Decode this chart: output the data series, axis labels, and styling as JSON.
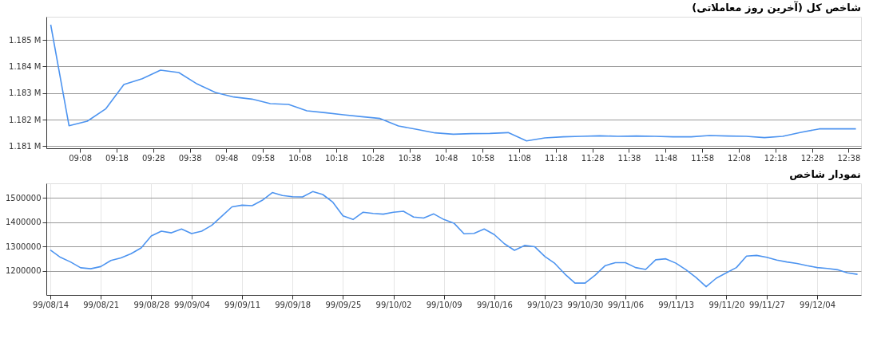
{
  "chart_data": [
    {
      "type": "line",
      "title": "شاخص کل (آخرین روز معاملاتی)",
      "grid": "y",
      "marker": "none",
      "line_style": "solid",
      "x": [
        9,
        9.0833,
        9.1667,
        9.25,
        9.3333,
        9.4167,
        9.5,
        9.5833,
        9.6667,
        9.75,
        9.8333,
        9.9167,
        10,
        10.0833,
        10.1667,
        10.25,
        10.3333,
        10.4167,
        10.5,
        10.5833,
        10.6667,
        10.75,
        10.8333,
        10.9167,
        11,
        11.0833,
        11.1667,
        11.25,
        11.3333,
        11.4167,
        11.5,
        11.5833,
        11.6667,
        11.75,
        11.8333,
        11.9167,
        12,
        12.0833,
        12.1667,
        12.25,
        12.3333,
        12.4167,
        12.5,
        12.5833,
        12.6667
      ],
      "series": [
        {
          "color": "#4d94f0",
          "values": [
            1185570,
            1181770,
            1181940,
            1182400,
            1183320,
            1183540,
            1183860,
            1183770,
            1183340,
            1183020,
            1182850,
            1182770,
            1182600,
            1182570,
            1182330,
            1182260,
            1182180,
            1182110,
            1182040,
            1181760,
            1181630,
            1181500,
            1181450,
            1181470,
            1181480,
            1181510,
            1181200,
            1181310,
            1181350,
            1181370,
            1181390,
            1181370,
            1181380,
            1181370,
            1181350,
            1181350,
            1181400,
            1181380,
            1181370,
            1181320,
            1181370,
            1181520,
            1181650,
            1181650,
            1181650
          ]
        }
      ],
      "xlim": [
        8.98,
        12.69
      ],
      "ylim": [
        1180920,
        1185870
      ],
      "xticks": [
        {
          "value": 9.1333,
          "label": "09:08"
        },
        {
          "value": 9.3,
          "label": "09:18"
        },
        {
          "value": 9.4667,
          "label": "09:28"
        },
        {
          "value": 9.6333,
          "label": "09:38"
        },
        {
          "value": 9.8,
          "label": "09:48"
        },
        {
          "value": 9.9667,
          "label": "09:58"
        },
        {
          "value": 10.1333,
          "label": "10:08"
        },
        {
          "value": 10.3,
          "label": "10:18"
        },
        {
          "value": 10.4667,
          "label": "10:28"
        },
        {
          "value": 10.6333,
          "label": "10:38"
        },
        {
          "value": 10.8,
          "label": "10:48"
        },
        {
          "value": 10.9667,
          "label": "10:58"
        },
        {
          "value": 11.1333,
          "label": "11:08"
        },
        {
          "value": 11.3,
          "label": "11:18"
        },
        {
          "value": 11.4667,
          "label": "11:28"
        },
        {
          "value": 11.6333,
          "label": "11:38"
        },
        {
          "value": 11.8,
          "label": "11:48"
        },
        {
          "value": 11.9667,
          "label": "11:58"
        },
        {
          "value": 12.1333,
          "label": "12:08"
        },
        {
          "value": 12.3,
          "label": "12:18"
        },
        {
          "value": 12.4667,
          "label": "12:28"
        },
        {
          "value": 12.6333,
          "label": "12:38"
        }
      ],
      "yticks": [
        {
          "value": 1181000,
          "label": "1.181 M"
        },
        {
          "value": 1182000,
          "label": "1.182 M"
        },
        {
          "value": 1183000,
          "label": "1.183 M"
        },
        {
          "value": 1184000,
          "label": "1.184 M"
        },
        {
          "value": 1185000,
          "label": "1.185 M"
        }
      ]
    },
    {
      "type": "line",
      "title": "نمودار شاخص",
      "grid": true,
      "marker": "none",
      "line_style": "solid",
      "categories": [
        "99/08/14",
        null,
        null,
        null,
        null,
        "99/08/21",
        null,
        null,
        null,
        null,
        "99/08/28",
        null,
        null,
        null,
        "99/09/04",
        null,
        null,
        null,
        null,
        "99/09/11",
        null,
        null,
        null,
        null,
        "99/09/18",
        null,
        null,
        null,
        null,
        "99/09/25",
        null,
        null,
        null,
        null,
        "99/10/02",
        null,
        null,
        null,
        null,
        "99/10/09",
        null,
        null,
        null,
        null,
        "99/10/16",
        null,
        null,
        null,
        null,
        "99/10/23",
        null,
        null,
        null,
        "99/10/30",
        null,
        null,
        null,
        "99/11/06",
        null,
        null,
        null,
        null,
        "99/11/13",
        null,
        null,
        null,
        null,
        "99/11/20",
        null,
        null,
        null,
        "99/11/27",
        null,
        null,
        null,
        null,
        "99/12/04",
        null,
        null,
        null,
        null
      ],
      "series": [
        {
          "color": "#4d94f0",
          "values": [
            1285000,
            1255000,
            1236000,
            1212000,
            1208000,
            1217000,
            1242000,
            1253000,
            1270000,
            1294000,
            1343000,
            1363000,
            1356000,
            1372000,
            1353000,
            1363000,
            1387000,
            1425000,
            1463000,
            1470000,
            1468000,
            1490000,
            1522000,
            1510000,
            1505000,
            1504000,
            1526000,
            1514000,
            1482000,
            1426000,
            1411000,
            1441000,
            1436000,
            1433000,
            1441000,
            1445000,
            1421000,
            1417000,
            1434000,
            1411000,
            1396000,
            1352000,
            1354000,
            1372000,
            1349000,
            1311000,
            1284000,
            1304000,
            1299000,
            1259000,
            1230000,
            1186000,
            1149000,
            1149000,
            1182000,
            1221000,
            1233000,
            1233000,
            1213000,
            1205000,
            1245000,
            1249000,
            1231000,
            1204000,
            1172000,
            1134000,
            1169000,
            1191000,
            1213000,
            1260000,
            1263000,
            1255000,
            1244000,
            1236000,
            1230000,
            1221000,
            1213000,
            1209000,
            1204000,
            1191000,
            1185000
          ]
        }
      ],
      "ylim": [
        1100000,
        1560000
      ],
      "yticks": [
        1200000,
        1300000,
        1400000,
        1500000
      ]
    }
  ]
}
